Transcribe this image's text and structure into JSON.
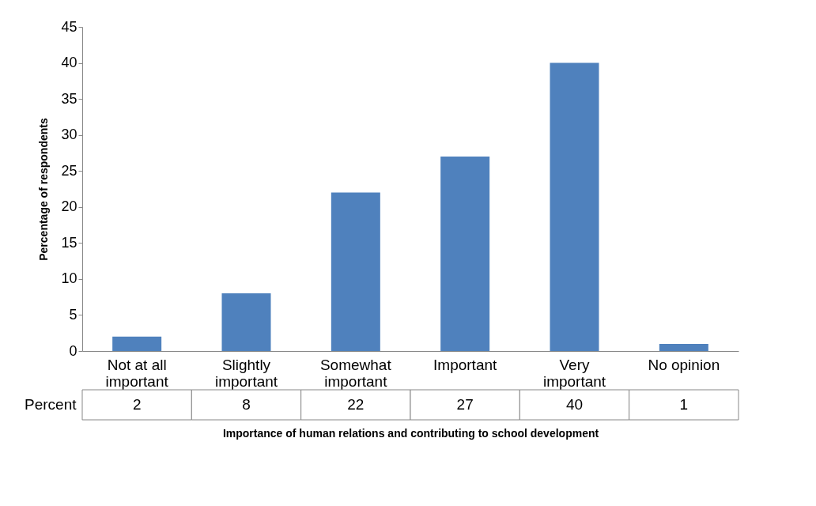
{
  "chart_data": {
    "type": "bar",
    "categories": [
      "Not at all important",
      "Slightly important",
      "Somewhat important",
      "Important",
      "Very important",
      "No opinion"
    ],
    "series": [
      {
        "name": "Percent",
        "color": "#4f81bd",
        "values": [
          2,
          8,
          22,
          27,
          40,
          1
        ]
      }
    ],
    "xlabel": "Importance of human relations and contributing to school development",
    "ylabel": "Percentage of respondents",
    "ylim": [
      0,
      45
    ],
    "yticks": [
      0,
      5,
      10,
      15,
      20,
      25,
      30,
      35,
      40,
      45
    ],
    "data_labels": true,
    "grid": false
  }
}
